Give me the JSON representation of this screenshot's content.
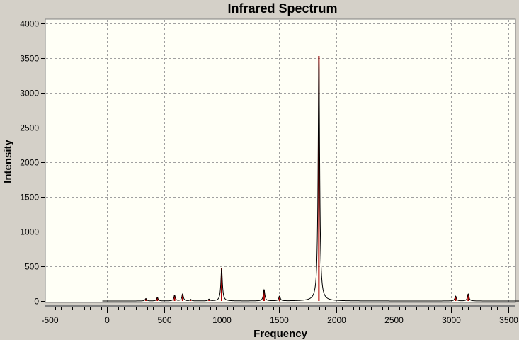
{
  "chart_data": {
    "type": "line",
    "title": "Infrared Spectrum",
    "xlabel": "Frequency",
    "ylabel": "Intensity",
    "xlim": [
      -500,
      3500
    ],
    "ylim": [
      0,
      4000
    ],
    "x_ticks": [
      -500,
      0,
      500,
      1000,
      1500,
      2000,
      2500,
      3000,
      3500
    ],
    "y_ticks": [
      0,
      500,
      1000,
      1500,
      2000,
      2500,
      3000,
      3500,
      4000
    ],
    "x_minor_step": 50,
    "grid": true,
    "colors": {
      "plot_background": "#fffff6",
      "frame_background": "#d4d0c8",
      "spectrum_line": "#000000",
      "stick_line": "#b00000",
      "grid": "#a0a0a0"
    },
    "spectrum_range": [
      -40,
      3600
    ],
    "line_halfwidth": 8,
    "peaks": [
      {
        "x": 340,
        "y": 35
      },
      {
        "x": 440,
        "y": 50
      },
      {
        "x": 590,
        "y": 80
      },
      {
        "x": 660,
        "y": 100
      },
      {
        "x": 730,
        "y": 22
      },
      {
        "x": 890,
        "y": 25
      },
      {
        "x": 1000,
        "y": 470
      },
      {
        "x": 1370,
        "y": 160
      },
      {
        "x": 1505,
        "y": 70
      },
      {
        "x": 1848,
        "y": 3530
      },
      {
        "x": 3040,
        "y": 70
      },
      {
        "x": 3150,
        "y": 100
      }
    ]
  }
}
